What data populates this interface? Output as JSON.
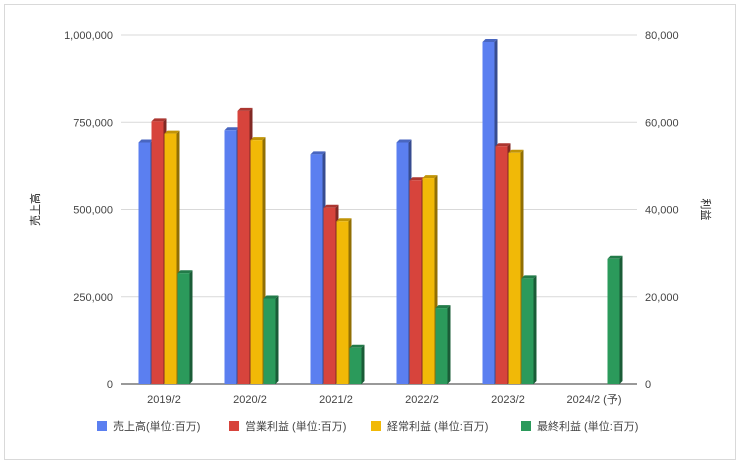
{
  "chart_data": {
    "type": "bar",
    "categories": [
      "2019/2",
      "2020/2",
      "2021/2",
      "2022/2",
      "2023/2",
      "2024/2 (予)"
    ],
    "left_axis": {
      "label": "売上高",
      "ylim": [
        0,
        1000000
      ],
      "ticks": [
        "0",
        "250,000",
        "500,000",
        "750,000",
        "1,000,000"
      ],
      "tick_values": [
        0,
        250000,
        500000,
        750000,
        1000000
      ]
    },
    "right_axis": {
      "label": "利益",
      "ylim": [
        0,
        80000
      ],
      "ticks": [
        "0",
        "20,000",
        "40,000",
        "60,000",
        "80,000"
      ],
      "tick_values": [
        0,
        20000,
        40000,
        60000,
        80000
      ]
    },
    "series": [
      {
        "name": "売上高(単位:百万)",
        "axis": "left",
        "color": "#5b7ff0",
        "values": [
          692000,
          727000,
          658000,
          692000,
          980000,
          null
        ]
      },
      {
        "name": "営業利益 (単位:百万)",
        "axis": "right",
        "color": "#d7443c",
        "values": [
          60200,
          62600,
          40400,
          46700,
          54500,
          null
        ]
      },
      {
        "name": "経常利益 (単位:百万)",
        "axis": "right",
        "color": "#f1b907",
        "values": [
          57400,
          55900,
          37300,
          47200,
          53000,
          null
        ]
      },
      {
        "name": "最終利益 (単位:百万)",
        "axis": "right",
        "color": "#2b9a5b",
        "values": [
          25400,
          19600,
          8300,
          17400,
          24200,
          28700
        ]
      }
    ],
    "grid": true,
    "legend_position": "bottom",
    "style": "3d-bars"
  }
}
